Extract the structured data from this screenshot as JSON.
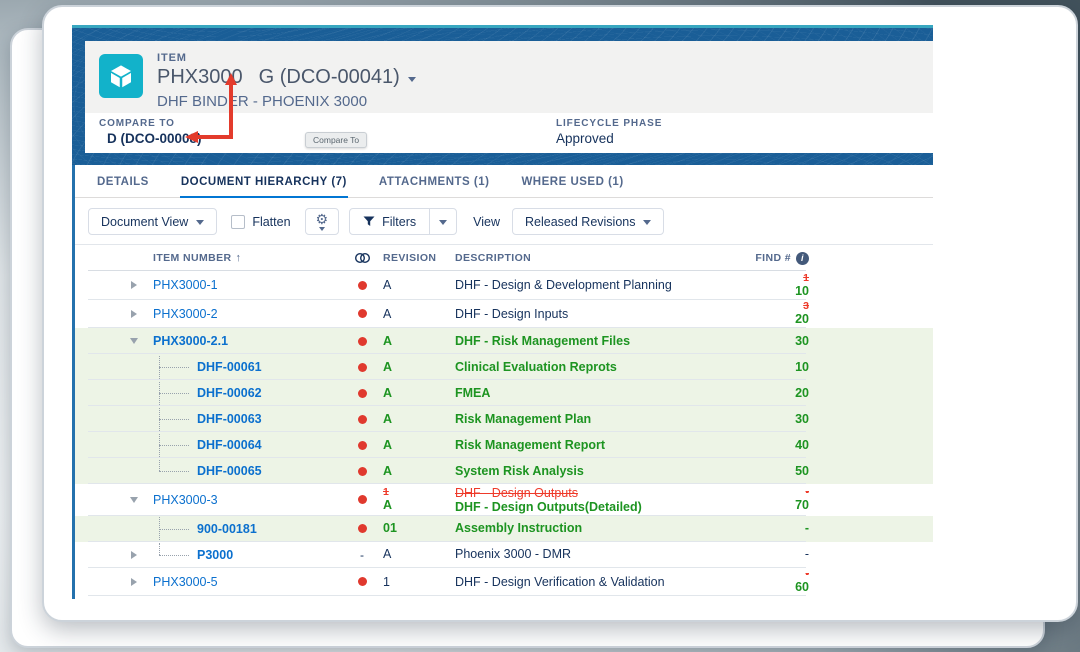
{
  "header": {
    "record_type_label": "ITEM",
    "item_number": "PHX3000",
    "revision_selector": "G (DCO-00041)",
    "subtitle": "DHF BINDER - PHOENIX 3000",
    "compare_to_label": "COMPARE TO",
    "compare_to_value": "D (DCO-00008)",
    "compare_to_tooltip": "Compare To",
    "lifecycle_phase_label": "LIFECYCLE PHASE",
    "lifecycle_phase_value": "Approved"
  },
  "tabs": [
    {
      "label": "DETAILS",
      "active": false
    },
    {
      "label": "DOCUMENT HIERARCHY (7)",
      "active": true
    },
    {
      "label": "ATTACHMENTS (1)",
      "active": false
    },
    {
      "label": "WHERE USED (1)",
      "active": false
    }
  ],
  "toolbar": {
    "document_view_button": "Document View",
    "flatten_label": "Flatten",
    "flatten_checked": false,
    "filters_button": "Filters",
    "view_label": "View",
    "view_selector": "Released Revisions"
  },
  "table": {
    "columns": {
      "item_number": "ITEM NUMBER",
      "revision": "REVISION",
      "description": "DESCRIPTION",
      "find_number": "FIND #"
    },
    "sort": "item_number ascending",
    "rows": [
      {
        "item": "PHX3000-1",
        "expander": "collapsed",
        "tree": null,
        "dot": "red",
        "highlight": false,
        "bold": false,
        "revision": {
          "new": "A",
          "color": "navy"
        },
        "description": {
          "new": "DHF - Design & Development Planning",
          "color": "navy"
        },
        "find": {
          "old": "1",
          "new": "10",
          "color": "green"
        }
      },
      {
        "item": "PHX3000-2",
        "expander": "collapsed",
        "tree": null,
        "dot": "red",
        "highlight": false,
        "bold": false,
        "revision": {
          "new": "A",
          "color": "navy"
        },
        "description": {
          "new": "DHF - Design Inputs",
          "color": "navy"
        },
        "find": {
          "old": "3",
          "new": "20",
          "color": "green"
        }
      },
      {
        "item": "PHX3000-2.1",
        "expander": "expanded",
        "tree": null,
        "dot": "red",
        "highlight": true,
        "bold": true,
        "revision": {
          "new": "A",
          "color": "green"
        },
        "description": {
          "new": "DHF - Risk Management Files",
          "color": "green"
        },
        "find": {
          "new": "30",
          "color": "green"
        }
      },
      {
        "item": "DHF-00061",
        "expander": null,
        "tree": "mid",
        "dot": "red",
        "highlight": true,
        "bold": true,
        "revision": {
          "new": "A",
          "color": "green"
        },
        "description": {
          "new": "Clinical Evaluation Reprots",
          "color": "green"
        },
        "find": {
          "new": "10",
          "color": "green"
        }
      },
      {
        "item": "DHF-00062",
        "expander": null,
        "tree": "mid",
        "dot": "red",
        "highlight": true,
        "bold": true,
        "revision": {
          "new": "A",
          "color": "green"
        },
        "description": {
          "new": "FMEA",
          "color": "green"
        },
        "find": {
          "new": "20",
          "color": "green"
        }
      },
      {
        "item": "DHF-00063",
        "expander": null,
        "tree": "mid",
        "dot": "red",
        "highlight": true,
        "bold": true,
        "revision": {
          "new": "A",
          "color": "green"
        },
        "description": {
          "new": "Risk Management Plan",
          "color": "green"
        },
        "find": {
          "new": "30",
          "color": "green"
        }
      },
      {
        "item": "DHF-00064",
        "expander": null,
        "tree": "mid",
        "dot": "red",
        "highlight": true,
        "bold": true,
        "revision": {
          "new": "A",
          "color": "green"
        },
        "description": {
          "new": "Risk Management Report",
          "color": "green"
        },
        "find": {
          "new": "40",
          "color": "green"
        }
      },
      {
        "item": "DHF-00065",
        "expander": null,
        "tree": "last",
        "dot": "red",
        "highlight": true,
        "bold": true,
        "revision": {
          "new": "A",
          "color": "green"
        },
        "description": {
          "new": "System Risk Analysis",
          "color": "green"
        },
        "find": {
          "new": "50",
          "color": "green"
        }
      },
      {
        "item": "PHX3000-3",
        "expander": "expanded",
        "tree": null,
        "dot": "red",
        "highlight": false,
        "bold": false,
        "revision": {
          "old": "1",
          "new": "A",
          "color": "green"
        },
        "description": {
          "old": "DHF - Design Outputs",
          "new": "DHF - Design Outputs(Detailed)",
          "color": "green"
        },
        "find": {
          "old": "-",
          "new": "70",
          "color": "green"
        }
      },
      {
        "item": "900-00181",
        "expander": null,
        "tree": "mid",
        "dot": "red",
        "highlight": true,
        "bold": true,
        "revision": {
          "new": "01",
          "color": "green"
        },
        "description": {
          "new": "Assembly Instruction",
          "color": "green"
        },
        "find": {
          "new": "-",
          "color": "green"
        }
      },
      {
        "item": "P3000",
        "expander": "collapsed",
        "tree": "last",
        "dot": "dash",
        "highlight": false,
        "bold": true,
        "revision": {
          "new": "A",
          "color": "navy"
        },
        "description": {
          "new": "Phoenix 3000 - DMR",
          "color": "navy"
        },
        "find": {
          "new": "-",
          "color": "navy"
        }
      },
      {
        "item": "PHX3000-5",
        "expander": "collapsed",
        "tree": null,
        "dot": "red",
        "highlight": false,
        "bold": false,
        "revision": {
          "new": "1",
          "color": "navy"
        },
        "description": {
          "new": "DHF - Design Verification & Validation",
          "color": "navy"
        },
        "find": {
          "old": "-",
          "new": "60",
          "color": "green"
        }
      }
    ]
  },
  "icons": {
    "item_type_icon": "teal-cube",
    "revision_caret_icon": "caret-down",
    "compare_annotation": "red-elbow-arrow",
    "gear_icon": "gear",
    "filter_icon": "funnel",
    "sort_icon": "arrow-up",
    "info_icon": "info-circle",
    "compare_column_icon": "overlapping-circles",
    "status_dot": "red-circle"
  },
  "colors": {
    "banner_blue": "#1a5e97",
    "accent_teal": "#38a7c0",
    "link_blue": "#0b70ce",
    "added_green": "#1d9421",
    "added_row_bg": "#edf4e6",
    "removed_red": "#ee3a2a",
    "status_dot_red": "#e0392e",
    "navy_text": "#16325c",
    "tab_underline": "#0176d3"
  }
}
